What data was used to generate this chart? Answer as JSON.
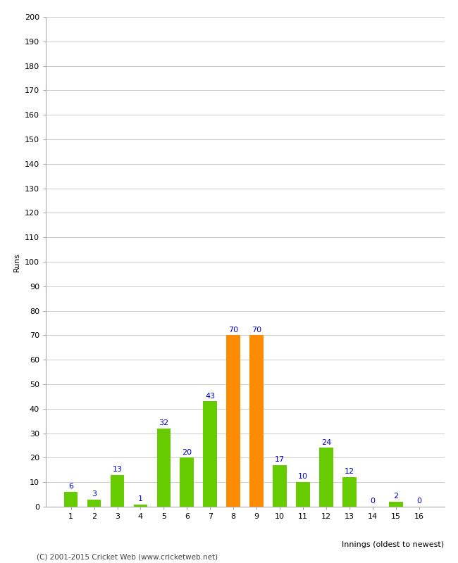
{
  "xlabel": "Innings (oldest to newest)",
  "ylabel": "Runs",
  "categories": [
    1,
    2,
    3,
    4,
    5,
    6,
    7,
    8,
    9,
    10,
    11,
    12,
    13,
    14,
    15,
    16
  ],
  "values": [
    6,
    3,
    13,
    1,
    32,
    20,
    43,
    70,
    70,
    17,
    10,
    24,
    12,
    0,
    2,
    0
  ],
  "bar_colors": [
    "#66cc00",
    "#66cc00",
    "#66cc00",
    "#66cc00",
    "#66cc00",
    "#66cc00",
    "#66cc00",
    "#ff8c00",
    "#ff8c00",
    "#66cc00",
    "#66cc00",
    "#66cc00",
    "#66cc00",
    "#66cc00",
    "#66cc00",
    "#66cc00"
  ],
  "ylim": [
    0,
    200
  ],
  "yticks": [
    0,
    10,
    20,
    30,
    40,
    50,
    60,
    70,
    80,
    90,
    100,
    110,
    120,
    130,
    140,
    150,
    160,
    170,
    180,
    190,
    200
  ],
  "label_color": "#0000cc",
  "background_color": "#ffffff",
  "grid_color": "#cccccc",
  "footer": "(C) 2001-2015 Cricket Web (www.cricketweb.net)",
  "tick_label_fontsize": 8,
  "axis_label_fontsize": 8
}
